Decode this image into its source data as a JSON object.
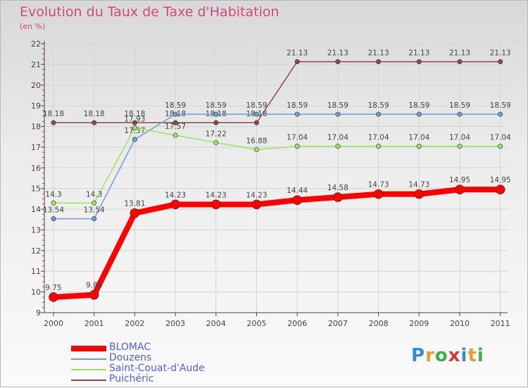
{
  "chart_data": {
    "type": "line",
    "title": "Evolution du Taux de Taxe d'Habitation",
    "unit": "(en %)",
    "x": [
      "2000",
      "2001",
      "2002",
      "2003",
      "2004",
      "2005",
      "2006",
      "2007",
      "2008",
      "2009",
      "2010",
      "2011"
    ],
    "ylim": [
      9,
      22
    ],
    "yticks": [
      9,
      10,
      11,
      12,
      13,
      14,
      15,
      16,
      17,
      18,
      19,
      20,
      21,
      22
    ],
    "grid": true,
    "legend_position": "bottom-left",
    "series": [
      {
        "name": "BLOMAC",
        "color": "#ff0000",
        "values": [
          9.75,
          9.86,
          13.81,
          14.23,
          14.23,
          14.23,
          14.44,
          14.58,
          14.73,
          14.73,
          14.95,
          14.95
        ],
        "labels": [
          "9.75",
          "9.86",
          "13.81",
          "14.23",
          "14.23",
          "14.23",
          "14.44",
          "14.58",
          "14.73",
          "14.73",
          "14.95",
          "14.95"
        ]
      },
      {
        "name": "Douzens",
        "color": "#6a9fd6",
        "values": [
          13.54,
          13.54,
          17.37,
          18.59,
          18.59,
          18.59,
          18.59,
          18.59,
          18.59,
          18.59,
          18.59,
          18.59
        ],
        "labels": [
          "13.54",
          "13.54",
          "17.37",
          "18.59",
          "18.59",
          "18.59",
          "18.59",
          "18.59",
          "18.59",
          "18.59",
          "18.59",
          "18.59"
        ]
      },
      {
        "name": "Saint-Couat-d'Aude",
        "color": "#99e55b",
        "values": [
          14.3,
          14.3,
          17.93,
          17.57,
          17.22,
          16.88,
          17.04,
          17.04,
          17.04,
          17.04,
          17.04,
          17.04
        ],
        "labels": [
          "14.3",
          "14.3",
          "17.93",
          "17.57",
          "17.22",
          "16.88",
          "17.04",
          "17.04",
          "17.04",
          "17.04",
          "17.04",
          "17.04"
        ]
      },
      {
        "name": "Puichéric",
        "color": "#8b4a4a",
        "values": [
          18.18,
          18.18,
          18.18,
          18.18,
          18.18,
          18.18,
          21.13,
          21.13,
          21.13,
          21.13,
          21.13,
          21.13
        ],
        "labels": [
          "18.18",
          "18.18",
          "18.18",
          "18.18",
          "18.18",
          "18.18",
          "21.13",
          "21.13",
          "21.13",
          "21.13",
          "21.13",
          "21.13"
        ]
      }
    ]
  },
  "brand": {
    "letters": [
      "P",
      "r",
      "o",
      "x",
      "i",
      "t",
      "i"
    ]
  }
}
